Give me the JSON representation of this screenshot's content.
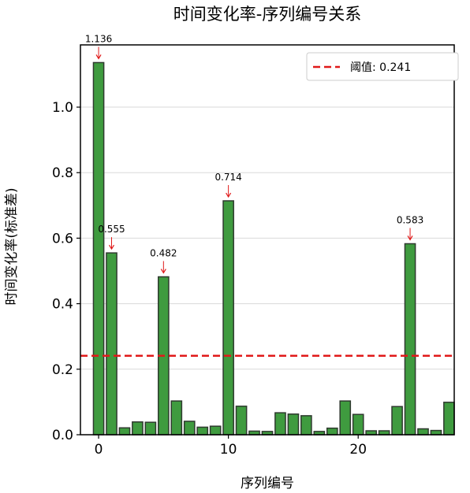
{
  "chart_data": {
    "type": "bar",
    "title": "时间变化率-序列编号关系",
    "xlabel": "序列编号",
    "ylabel": "时间变化率(标准差)",
    "xlim": [
      -1.4,
      27.4
    ],
    "ylim": [
      0,
      1.19
    ],
    "x_ticks": [
      0,
      10,
      20
    ],
    "y_ticks": [
      0.0,
      0.2,
      0.4,
      0.6,
      0.8,
      1.0
    ],
    "grid": "y",
    "legend_position": "top-right",
    "x": [
      0,
      1,
      2,
      3,
      4,
      5,
      6,
      7,
      8,
      9,
      10,
      11,
      12,
      13,
      14,
      15,
      16,
      17,
      18,
      19,
      20,
      21,
      22,
      23,
      24,
      25,
      26,
      27
    ],
    "values": [
      1.136,
      0.555,
      0.021,
      0.039,
      0.038,
      0.482,
      0.103,
      0.041,
      0.023,
      0.026,
      0.714,
      0.087,
      0.011,
      0.01,
      0.067,
      0.063,
      0.058,
      0.01,
      0.02,
      0.103,
      0.062,
      0.012,
      0.012,
      0.086,
      0.583,
      0.018,
      0.013,
      0.099
    ],
    "bar_color": "#3f9b3f",
    "bar_edge_color": "#2f3a2f",
    "threshold": {
      "value": 0.241,
      "label": "阈值: 0.241",
      "color": "#e01919"
    },
    "annotations": [
      {
        "index": 0,
        "text": "1.136"
      },
      {
        "index": 1,
        "text": "0.555"
      },
      {
        "index": 5,
        "text": "0.482"
      },
      {
        "index": 10,
        "text": "0.714"
      },
      {
        "index": 24,
        "text": "0.583"
      }
    ],
    "annotation_arrow_color": "#e01919"
  }
}
